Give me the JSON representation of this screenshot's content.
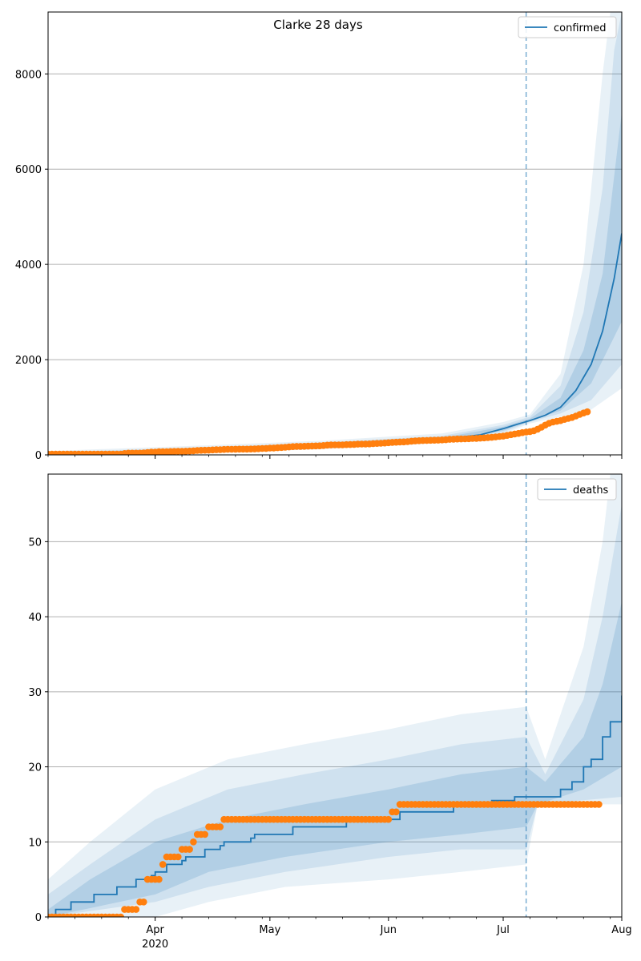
{
  "figure": {
    "title": "Clarke 28 days"
  },
  "colors": {
    "forecast": "#1f77b4",
    "observed": "#ff7f0e",
    "grid": "#b0b0b0",
    "band": "#1f77b4"
  },
  "chart_data": [
    {
      "type": "line",
      "panel": "confirmed",
      "title": "Clarke 28 days",
      "xlabel": "",
      "ylabel": "",
      "x_start": "2020-03-04",
      "forecast_start": "2020-07-07",
      "x_end": "2020-08-01",
      "ylim": [
        0,
        9300
      ],
      "yticks": [
        0,
        2000,
        4000,
        6000,
        8000
      ],
      "xticks": [
        {
          "date": "2020-04-01",
          "label": "Apr",
          "sublabel": "2020"
        },
        {
          "date": "2020-05-01",
          "label": "May",
          "sublabel": ""
        },
        {
          "date": "2020-06-01",
          "label": "Jun",
          "sublabel": ""
        },
        {
          "date": "2020-07-01",
          "label": "Jul",
          "sublabel": ""
        },
        {
          "date": "2020-08-01",
          "label": "Aug",
          "sublabel": ""
        }
      ],
      "grid": "horizontal",
      "legend": {
        "position": "top-right",
        "entries": [
          "confirmed"
        ]
      },
      "forecast_median": [
        [
          "2020-03-04",
          22
        ],
        [
          "2020-03-15",
          28
        ],
        [
          "2020-03-25",
          45
        ],
        [
          "2020-04-05",
          70
        ],
        [
          "2020-04-15",
          100
        ],
        [
          "2020-05-01",
          150
        ],
        [
          "2020-05-15",
          190
        ],
        [
          "2020-06-01",
          270
        ],
        [
          "2020-06-15",
          330
        ],
        [
          "2020-06-25",
          420
        ],
        [
          "2020-07-01",
          550
        ],
        [
          "2020-07-05",
          650
        ],
        [
          "2020-07-08",
          720
        ],
        [
          "2020-07-12",
          830
        ],
        [
          "2020-07-16",
          1000
        ],
        [
          "2020-07-20",
          1350
        ],
        [
          "2020-07-24",
          1900
        ],
        [
          "2020-07-27",
          2600
        ],
        [
          "2020-07-30",
          3700
        ],
        [
          "2020-08-01",
          4650
        ]
      ],
      "bands": [
        {
          "lower": [
            [
              "2020-03-04",
              0
            ],
            [
              "2020-04-15",
              40
            ],
            [
              "2020-05-15",
              120
            ],
            [
              "2020-06-15",
              250
            ],
            [
              "2020-07-01",
              440
            ],
            [
              "2020-07-08",
              660
            ],
            [
              "2020-07-16",
              800
            ],
            [
              "2020-07-24",
              950
            ],
            [
              "2020-08-01",
              1400
            ]
          ],
          "upper": [
            [
              "2020-03-04",
              80
            ],
            [
              "2020-04-15",
              200
            ],
            [
              "2020-05-15",
              300
            ],
            [
              "2020-06-15",
              450
            ],
            [
              "2020-07-01",
              690
            ],
            [
              "2020-07-08",
              850
            ],
            [
              "2020-07-16",
              1700
            ],
            [
              "2020-07-22",
              4000
            ],
            [
              "2020-07-27",
              8000
            ],
            [
              "2020-07-29",
              9300
            ],
            [
              "2020-08-01",
              9300
            ]
          ]
        },
        {
          "lower": [
            [
              "2020-03-04",
              5
            ],
            [
              "2020-04-15",
              60
            ],
            [
              "2020-05-15",
              140
            ],
            [
              "2020-06-15",
              280
            ],
            [
              "2020-07-01",
              480
            ],
            [
              "2020-07-08",
              690
            ],
            [
              "2020-07-16",
              870
            ],
            [
              "2020-07-24",
              1150
            ],
            [
              "2020-08-01",
              1900
            ]
          ],
          "upper": [
            [
              "2020-03-04",
              55
            ],
            [
              "2020-04-15",
              160
            ],
            [
              "2020-05-15",
              260
            ],
            [
              "2020-06-15",
              400
            ],
            [
              "2020-07-01",
              630
            ],
            [
              "2020-07-08",
              800
            ],
            [
              "2020-07-16",
              1450
            ],
            [
              "2020-07-22",
              3000
            ],
            [
              "2020-07-27",
              5600
            ],
            [
              "2020-07-30",
              8500
            ],
            [
              "2020-08-01",
              9300
            ]
          ]
        },
        {
          "lower": [
            [
              "2020-03-04",
              12
            ],
            [
              "2020-04-15",
              80
            ],
            [
              "2020-05-15",
              165
            ],
            [
              "2020-06-15",
              305
            ],
            [
              "2020-07-01",
              510
            ],
            [
              "2020-07-08",
              710
            ],
            [
              "2020-07-16",
              930
            ],
            [
              "2020-07-24",
              1500
            ],
            [
              "2020-08-01",
              2800
            ]
          ],
          "upper": [
            [
              "2020-03-04",
              35
            ],
            [
              "2020-04-15",
              130
            ],
            [
              "2020-05-15",
              220
            ],
            [
              "2020-06-15",
              360
            ],
            [
              "2020-07-01",
              590
            ],
            [
              "2020-07-08",
              760
            ],
            [
              "2020-07-16",
              1200
            ],
            [
              "2020-07-22",
              2200
            ],
            [
              "2020-07-27",
              3800
            ],
            [
              "2020-08-01",
              7200
            ]
          ]
        }
      ],
      "observed": {
        "start": "2020-03-04",
        "values": [
          17,
          17,
          17,
          17,
          17,
          17,
          17,
          17,
          17,
          17,
          17,
          17,
          17,
          17,
          17,
          17,
          17,
          17,
          17,
          17,
          29,
          37,
          37,
          37,
          37,
          42,
          49,
          58,
          59,
          66,
          67,
          68,
          70,
          72,
          75,
          76,
          77,
          80,
          85,
          93,
          96,
          98,
          99,
          105,
          108,
          110,
          115,
          117,
          118,
          120,
          121,
          121,
          121,
          123,
          125,
          130,
          134,
          136,
          143,
          145,
          149,
          155,
          159,
          167,
          174,
          178,
          179,
          180,
          184,
          186,
          188,
          190,
          196,
          205,
          209,
          210,
          210,
          211,
          215,
          217,
          220,
          225,
          227,
          229,
          231,
          237,
          241,
          244,
          249,
          255,
          262,
          265,
          270,
          273,
          278,
          287,
          292,
          298,
          301,
          303,
          306,
          307,
          310,
          314,
          318,
          326,
          329,
          333,
          335,
          337,
          340,
          344,
          346,
          352,
          356,
          363,
          369,
          377,
          386,
          394,
          409,
          423,
          439,
          451,
          467,
          480,
          490,
          507,
          540,
          580,
          625,
          665,
          690,
          705,
          720,
          745,
          765,
          785,
          815,
          850,
          880,
          905
        ]
      }
    },
    {
      "type": "line",
      "panel": "deaths",
      "title": "",
      "xlabel": "",
      "ylabel": "",
      "x_start": "2020-03-04",
      "forecast_start": "2020-07-07",
      "x_end": "2020-08-01",
      "ylim": [
        0,
        59
      ],
      "yticks": [
        0,
        10,
        20,
        30,
        40,
        50
      ],
      "xticks": [
        {
          "date": "2020-04-01",
          "label": "Apr",
          "sublabel": "2020"
        },
        {
          "date": "2020-05-01",
          "label": "May",
          "sublabel": ""
        },
        {
          "date": "2020-06-01",
          "label": "Jun",
          "sublabel": ""
        },
        {
          "date": "2020-07-01",
          "label": "Jul",
          "sublabel": ""
        },
        {
          "date": "2020-08-01",
          "label": "Aug",
          "sublabel": ""
        }
      ],
      "grid": "horizontal",
      "legend": {
        "position": "top-right",
        "entries": [
          "deaths"
        ]
      },
      "forecast_median": [
        [
          "2020-03-04",
          0
        ],
        [
          "2020-03-06",
          1
        ],
        [
          "2020-03-10",
          2
        ],
        [
          "2020-03-16",
          3
        ],
        [
          "2020-03-22",
          4
        ],
        [
          "2020-03-27",
          5
        ],
        [
          "2020-03-31",
          5.5
        ],
        [
          "2020-04-01",
          6
        ],
        [
          "2020-04-04",
          7
        ],
        [
          "2020-04-08",
          7.5
        ],
        [
          "2020-04-09",
          8
        ],
        [
          "2020-04-14",
          9
        ],
        [
          "2020-04-18",
          9.5
        ],
        [
          "2020-04-19",
          10
        ],
        [
          "2020-04-26",
          10.5
        ],
        [
          "2020-04-27",
          11
        ],
        [
          "2020-05-07",
          12
        ],
        [
          "2020-05-21",
          13
        ],
        [
          "2020-06-04",
          14
        ],
        [
          "2020-06-18",
          15
        ],
        [
          "2020-06-28",
          15.5
        ],
        [
          "2020-07-04",
          16
        ],
        [
          "2020-07-07",
          16
        ],
        [
          "2020-07-12",
          16
        ],
        [
          "2020-07-16",
          17
        ],
        [
          "2020-07-19",
          18
        ],
        [
          "2020-07-22",
          20
        ],
        [
          "2020-07-24",
          21
        ],
        [
          "2020-07-27",
          24
        ],
        [
          "2020-07-29",
          26
        ],
        [
          "2020-08-01",
          29.5
        ]
      ],
      "bands": [
        {
          "lower": [
            [
              "2020-03-04",
              0
            ],
            [
              "2020-04-01",
              0
            ],
            [
              "2020-04-15",
              2
            ],
            [
              "2020-05-05",
              4
            ],
            [
              "2020-06-01",
              5
            ],
            [
              "2020-06-20",
              6
            ],
            [
              "2020-07-07",
              7
            ],
            [
              "2020-07-10",
              15
            ],
            [
              "2020-08-01",
              15
            ]
          ],
          "upper": [
            [
              "2020-03-04",
              5
            ],
            [
              "2020-03-15",
              10
            ],
            [
              "2020-04-01",
              17
            ],
            [
              "2020-04-20",
              21
            ],
            [
              "2020-05-10",
              23
            ],
            [
              "2020-06-01",
              25
            ],
            [
              "2020-06-20",
              27
            ],
            [
              "2020-07-07",
              28
            ],
            [
              "2020-07-12",
              21
            ],
            [
              "2020-07-22",
              36
            ],
            [
              "2020-07-27",
              50
            ],
            [
              "2020-07-29",
              59
            ],
            [
              "2020-08-01",
              59
            ]
          ]
        },
        {
          "lower": [
            [
              "2020-03-04",
              0
            ],
            [
              "2020-04-01",
              2
            ],
            [
              "2020-04-15",
              4
            ],
            [
              "2020-05-05",
              6
            ],
            [
              "2020-06-01",
              8
            ],
            [
              "2020-06-20",
              9
            ],
            [
              "2020-07-07",
              9
            ],
            [
              "2020-07-10",
              15
            ],
            [
              "2020-08-01",
              16
            ]
          ],
          "upper": [
            [
              "2020-03-04",
              3
            ],
            [
              "2020-03-15",
              7
            ],
            [
              "2020-04-01",
              13
            ],
            [
              "2020-04-20",
              17
            ],
            [
              "2020-05-10",
              19
            ],
            [
              "2020-06-01",
              21
            ],
            [
              "2020-06-20",
              23
            ],
            [
              "2020-07-07",
              24
            ],
            [
              "2020-07-12",
              19
            ],
            [
              "2020-07-22",
              29
            ],
            [
              "2020-07-27",
              40
            ],
            [
              "2020-08-01",
              55
            ]
          ]
        },
        {
          "lower": [
            [
              "2020-03-04",
              0
            ],
            [
              "2020-04-01",
              3
            ],
            [
              "2020-04-15",
              6
            ],
            [
              "2020-05-05",
              8
            ],
            [
              "2020-06-01",
              10
            ],
            [
              "2020-06-20",
              11
            ],
            [
              "2020-07-07",
              12
            ],
            [
              "2020-07-10",
              15
            ],
            [
              "2020-07-22",
              17
            ],
            [
              "2020-08-01",
              20
            ]
          ],
          "upper": [
            [
              "2020-03-04",
              1
            ],
            [
              "2020-03-15",
              5
            ],
            [
              "2020-04-01",
              10
            ],
            [
              "2020-04-20",
              13
            ],
            [
              "2020-05-10",
              15
            ],
            [
              "2020-06-01",
              17
            ],
            [
              "2020-06-20",
              19
            ],
            [
              "2020-07-07",
              20
            ],
            [
              "2020-07-12",
              18
            ],
            [
              "2020-07-22",
              24
            ],
            [
              "2020-07-27",
              31
            ],
            [
              "2020-08-01",
              42
            ]
          ]
        }
      ],
      "observed": {
        "start": "2020-03-04",
        "values": [
          0,
          0,
          0,
          0,
          0,
          0,
          0,
          0,
          0,
          0,
          0,
          0,
          0,
          0,
          0,
          0,
          0,
          0,
          0,
          0,
          1,
          1,
          1,
          1,
          2,
          2,
          5,
          5,
          5,
          5,
          7,
          8,
          8,
          8,
          8,
          9,
          9,
          9,
          10,
          11,
          11,
          11,
          12,
          12,
          12,
          12,
          13,
          13,
          13,
          13,
          13,
          13,
          13,
          13,
          13,
          13,
          13,
          13,
          13,
          13,
          13,
          13,
          13,
          13,
          13,
          13,
          13,
          13,
          13,
          13,
          13,
          13,
          13,
          13,
          13,
          13,
          13,
          13,
          13,
          13,
          13,
          13,
          13,
          13,
          13,
          13,
          13,
          13,
          13,
          13,
          14,
          14,
          15,
          15,
          15,
          15,
          15,
          15,
          15,
          15,
          15,
          15,
          15,
          15,
          15,
          15,
          15,
          15,
          15,
          15,
          15,
          15,
          15,
          15,
          15,
          15,
          15,
          15,
          15,
          15,
          15,
          15,
          15,
          15,
          15,
          15,
          15,
          15,
          15,
          15,
          15,
          15,
          15,
          15,
          15,
          15,
          15,
          15,
          15,
          15,
          15,
          15,
          15,
          15,
          15
        ]
      }
    }
  ]
}
